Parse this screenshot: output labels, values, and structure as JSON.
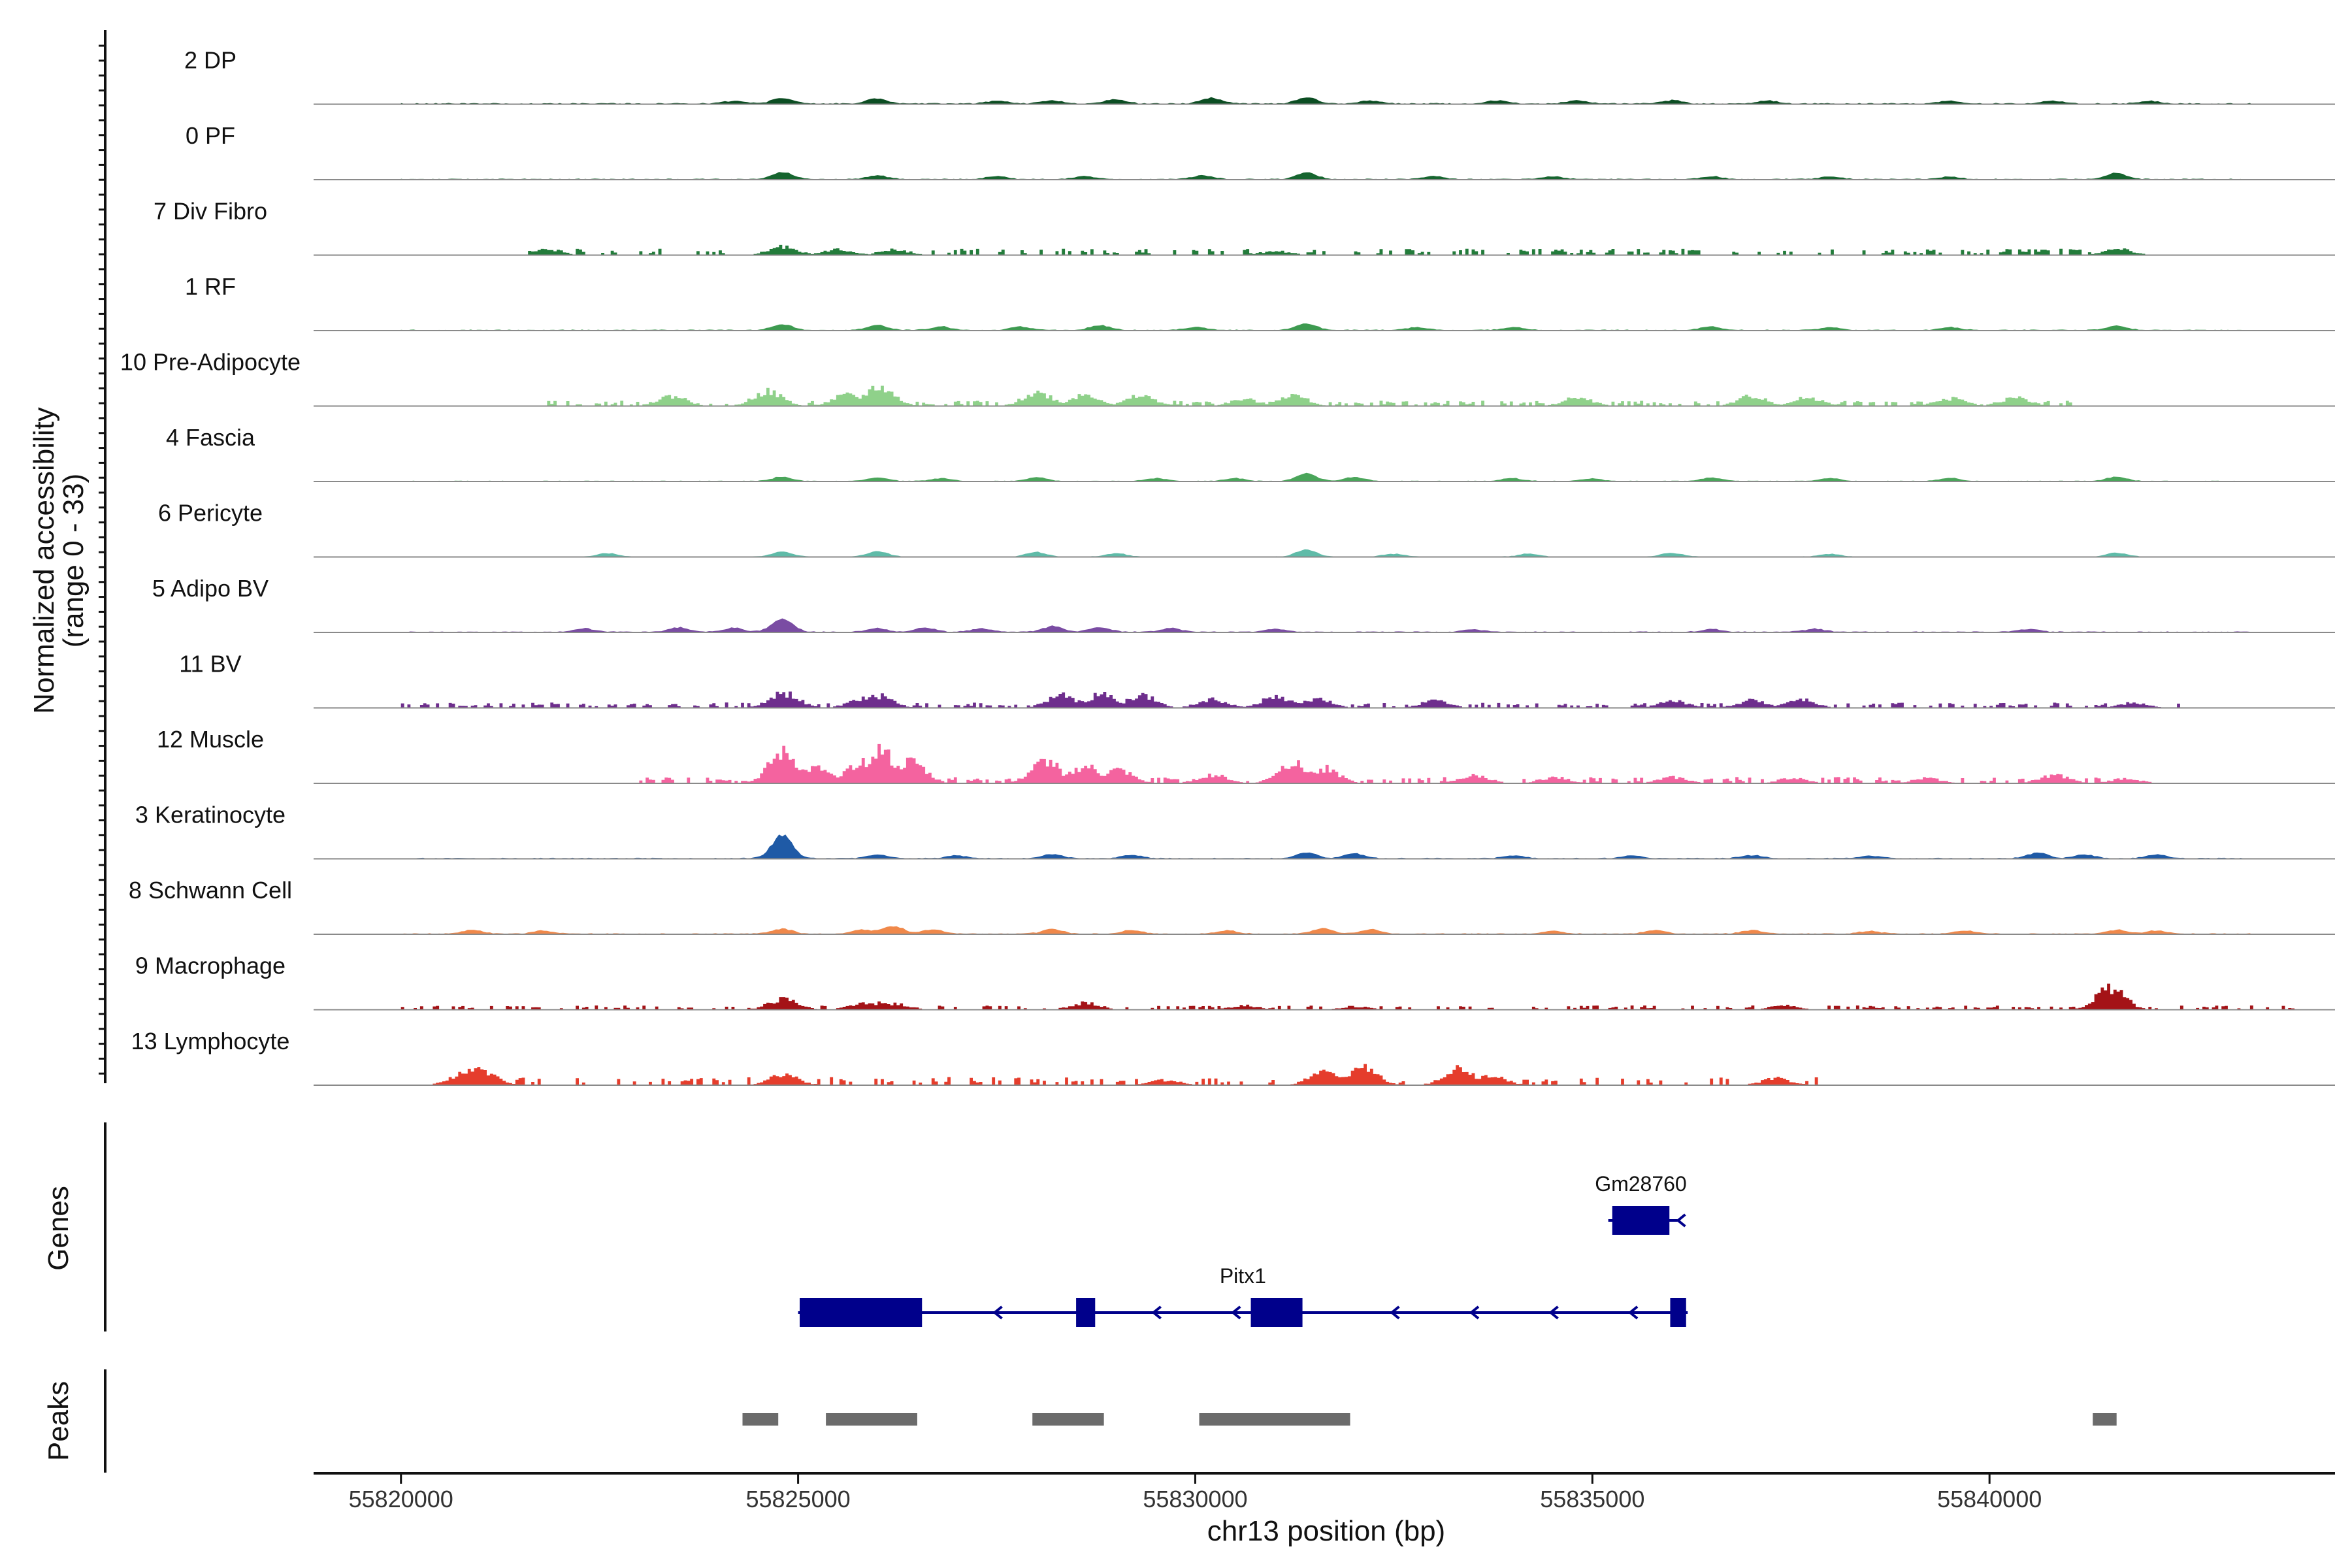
{
  "chart_data": {
    "type": "coverage",
    "ylabel_line1": "Normalized accessibility",
    "ylabel_line2": "(range 0 - 33)",
    "xlabel": "chr13 position (bp)",
    "xlim": [
      55818900,
      55844350
    ],
    "x_ticks": [
      55820000,
      55825000,
      55830000,
      55835000,
      55840000
    ],
    "x_tick_labels": [
      "55820000",
      "55825000",
      "55830000",
      "55835000",
      "55840000"
    ],
    "tracks": [
      {
        "name": "2 DP",
        "color": "#0b4d22",
        "mode": "smooth",
        "start": 55820000,
        "end": 55843300,
        "base": 0.6,
        "peaks": [
          [
            55824200,
            1.5
          ],
          [
            55824800,
            2.8
          ],
          [
            55826000,
            2.6
          ],
          [
            55827500,
            1.5
          ],
          [
            55828200,
            1.7
          ],
          [
            55829000,
            2.4
          ],
          [
            55830200,
            3.0
          ],
          [
            55831400,
            3.4
          ],
          [
            55832200,
            1.5
          ],
          [
            55833800,
            1.6
          ],
          [
            55834800,
            1.5
          ],
          [
            55836000,
            1.7
          ],
          [
            55837200,
            1.5
          ],
          [
            55839500,
            1.5
          ],
          [
            55840800,
            1.4
          ],
          [
            55842000,
            1.4
          ]
        ]
      },
      {
        "name": "0 PF",
        "color": "#16652f",
        "mode": "smooth",
        "start": 55820000,
        "end": 55843300,
        "base": 0.5,
        "peaks": [
          [
            55824800,
            4.0
          ],
          [
            55826000,
            2.0
          ],
          [
            55827500,
            1.5
          ],
          [
            55828600,
            1.5
          ],
          [
            55830100,
            2.0
          ],
          [
            55831400,
            3.4
          ],
          [
            55833000,
            1.4
          ],
          [
            55834500,
            1.3
          ],
          [
            55836500,
            1.5
          ],
          [
            55838000,
            1.4
          ],
          [
            55839500,
            1.3
          ],
          [
            55841600,
            3.2
          ]
        ]
      },
      {
        "name": "7 Div Fibro",
        "color": "#237c3b",
        "mode": "blocky",
        "start": 55821600,
        "end": 55842000,
        "fill": 0.38,
        "baseH": 3.0,
        "peaks": [
          [
            55821800,
            4.0
          ],
          [
            55824800,
            5.0
          ],
          [
            55825500,
            3.5
          ],
          [
            55826200,
            3.2
          ],
          [
            55831000,
            2.5
          ],
          [
            55841600,
            3.5
          ]
        ]
      },
      {
        "name": "1 RF",
        "color": "#3d9a50",
        "mode": "smooth",
        "start": 55820000,
        "end": 55843300,
        "base": 0.5,
        "peaks": [
          [
            55824800,
            3.0
          ],
          [
            55826000,
            2.4
          ],
          [
            55826800,
            1.8
          ],
          [
            55827800,
            1.8
          ],
          [
            55828800,
            2.4
          ],
          [
            55830000,
            1.6
          ],
          [
            55831400,
            3.2
          ],
          [
            55832800,
            1.5
          ],
          [
            55834000,
            1.5
          ],
          [
            55836500,
            1.8
          ],
          [
            55838000,
            1.4
          ],
          [
            55839500,
            1.5
          ],
          [
            55841600,
            2.2
          ]
        ]
      },
      {
        "name": "10 Pre-Adipocyte",
        "color": "#8fd18a",
        "mode": "blocky",
        "start": 55821800,
        "end": 55841000,
        "fill": 0.55,
        "baseH": 2.5,
        "peaks": [
          [
            55823400,
            6.0
          ],
          [
            55824600,
            8.5
          ],
          [
            55825600,
            6.5
          ],
          [
            55826000,
            11.5
          ],
          [
            55828000,
            8.0
          ],
          [
            55828600,
            7.0
          ],
          [
            55829300,
            6.0
          ],
          [
            55830600,
            4.0
          ],
          [
            55831200,
            6.5
          ],
          [
            55834800,
            5.0
          ],
          [
            55837000,
            6.0
          ],
          [
            55837700,
            5.0
          ],
          [
            55839500,
            4.5
          ],
          [
            55840300,
            5.0
          ]
        ]
      },
      {
        "name": "4 Fascia",
        "color": "#4aa55a",
        "mode": "smooth",
        "start": 55820000,
        "end": 55843300,
        "base": 0.4,
        "peaks": [
          [
            55824800,
            2.2
          ],
          [
            55826000,
            1.8
          ],
          [
            55826800,
            1.4
          ],
          [
            55828000,
            1.9
          ],
          [
            55829500,
            1.5
          ],
          [
            55830500,
            1.5
          ],
          [
            55831400,
            4.0
          ],
          [
            55832000,
            2.2
          ],
          [
            55834000,
            1.5
          ],
          [
            55835000,
            1.3
          ],
          [
            55836500,
            1.8
          ],
          [
            55838000,
            1.5
          ],
          [
            55839500,
            1.6
          ],
          [
            55841600,
            2.2
          ]
        ]
      },
      {
        "name": "6 Pericyte",
        "color": "#5fbba8",
        "mode": "smooth",
        "start": 55820500,
        "end": 55843300,
        "base": 0.3,
        "peaks": [
          [
            55822600,
            1.8
          ],
          [
            55824800,
            2.5
          ],
          [
            55826000,
            2.8
          ],
          [
            55828000,
            2.4
          ],
          [
            55829000,
            1.8
          ],
          [
            55831400,
            3.5
          ],
          [
            55832500,
            1.5
          ],
          [
            55834200,
            1.5
          ],
          [
            55836000,
            2.0
          ],
          [
            55838000,
            1.4
          ],
          [
            55841600,
            2.0
          ]
        ]
      },
      {
        "name": "5 Adipo BV",
        "color": "#7a4ca3",
        "mode": "smooth",
        "start": 55820000,
        "end": 55843300,
        "base": 0.5,
        "peaks": [
          [
            55822300,
            1.8
          ],
          [
            55823500,
            2.2
          ],
          [
            55824200,
            2.0
          ],
          [
            55824800,
            7.0
          ],
          [
            55826000,
            1.8
          ],
          [
            55826600,
            2.2
          ],
          [
            55827300,
            1.8
          ],
          [
            55828200,
            2.8
          ],
          [
            55828800,
            2.5
          ],
          [
            55829700,
            2.0
          ],
          [
            55831000,
            1.5
          ],
          [
            55833500,
            1.3
          ],
          [
            55836500,
            1.4
          ],
          [
            55837800,
            1.6
          ],
          [
            55840500,
            1.4
          ]
        ]
      },
      {
        "name": "11 BV",
        "color": "#6e2e8d",
        "mode": "blocky",
        "start": 55820000,
        "end": 55842400,
        "fill": 0.45,
        "baseH": 2.5,
        "peaks": [
          [
            55824800,
            9.0
          ],
          [
            55825800,
            5.5
          ],
          [
            55826000,
            7.0
          ],
          [
            55828300,
            7.5
          ],
          [
            55828800,
            8.0
          ],
          [
            55829300,
            7.5
          ],
          [
            55830200,
            5.0
          ],
          [
            55831000,
            6.5
          ],
          [
            55831500,
            5.5
          ],
          [
            55833000,
            4.0
          ],
          [
            55836000,
            4.0
          ],
          [
            55837000,
            4.5
          ],
          [
            55837600,
            5.0
          ],
          [
            55841800,
            3.0
          ]
        ]
      },
      {
        "name": "12 Muscle",
        "color": "#f4639f",
        "mode": "blocky",
        "start": 55823000,
        "end": 55842000,
        "fill": 0.5,
        "baseH": 3.0,
        "peaks": [
          [
            55824800,
            18.0
          ],
          [
            55825200,
            9.0
          ],
          [
            55825800,
            14.0
          ],
          [
            55826000,
            20.0
          ],
          [
            55826400,
            13.0
          ],
          [
            55828100,
            13.0
          ],
          [
            55828600,
            10.0
          ],
          [
            55829000,
            8.0
          ],
          [
            55830200,
            5.0
          ],
          [
            55831200,
            12.0
          ],
          [
            55831600,
            9.0
          ],
          [
            55833500,
            4.5
          ],
          [
            55834500,
            3.5
          ],
          [
            55836000,
            3.5
          ],
          [
            55837500,
            3.0
          ],
          [
            55839200,
            3.0
          ],
          [
            55840800,
            5.0
          ],
          [
            55841700,
            3.0
          ]
        ]
      },
      {
        "name": "3 Keratinocyte",
        "color": "#1f5aa6",
        "mode": "smooth",
        "start": 55820000,
        "end": 55843300,
        "base": 0.5,
        "peaks": [
          [
            55824800,
            12.0
          ],
          [
            55826000,
            2.0
          ],
          [
            55827000,
            1.5
          ],
          [
            55828200,
            2.2
          ],
          [
            55829200,
            1.6
          ],
          [
            55831400,
            3.0
          ],
          [
            55832000,
            2.5
          ],
          [
            55834000,
            1.4
          ],
          [
            55835500,
            1.5
          ],
          [
            55837000,
            1.6
          ],
          [
            55838500,
            1.3
          ],
          [
            55840600,
            3.0
          ],
          [
            55841200,
            2.0
          ],
          [
            55842100,
            2.0
          ]
        ]
      },
      {
        "name": "8 Schwann Cell",
        "color": "#f0884a",
        "mode": "smooth",
        "start": 55820000,
        "end": 55843300,
        "base": 0.5,
        "peaks": [
          [
            55820900,
            2.0
          ],
          [
            55821800,
            1.6
          ],
          [
            55824800,
            2.5
          ],
          [
            55825800,
            2.0
          ],
          [
            55826200,
            4.0
          ],
          [
            55826700,
            2.2
          ],
          [
            55828200,
            2.4
          ],
          [
            55829200,
            1.8
          ],
          [
            55830400,
            1.8
          ],
          [
            55831600,
            2.8
          ],
          [
            55832200,
            2.2
          ],
          [
            55834500,
            1.5
          ],
          [
            55835800,
            2.0
          ],
          [
            55837000,
            1.8
          ],
          [
            55838500,
            1.5
          ],
          [
            55839700,
            1.6
          ],
          [
            55841600,
            2.0
          ],
          [
            55842100,
            1.6
          ]
        ]
      },
      {
        "name": "9 Macrophage",
        "color": "#a41317",
        "mode": "blocky",
        "start": 55820000,
        "end": 55843800,
        "fill": 0.35,
        "baseH": 2.0,
        "peaks": [
          [
            55824800,
            6.5
          ],
          [
            55825800,
            3.5
          ],
          [
            55826000,
            4.0
          ],
          [
            55826200,
            3.5
          ],
          [
            55828600,
            4.0
          ],
          [
            55830600,
            2.5
          ],
          [
            55832000,
            2.0
          ],
          [
            55837400,
            2.5
          ],
          [
            55841500,
            12.5
          ]
        ]
      },
      {
        "name": "13 Lymphocyte",
        "color": "#e53d2c",
        "mode": "blocky",
        "start": 55820400,
        "end": 55837800,
        "fill": 0.32,
        "baseH": 4.0,
        "peaks": [
          [
            55820800,
            8.0
          ],
          [
            55821000,
            9.0
          ],
          [
            55824800,
            6.5
          ],
          [
            55829600,
            3.0
          ],
          [
            55831600,
            7.5
          ],
          [
            55832100,
            10.5
          ],
          [
            55833300,
            10.0
          ],
          [
            55833700,
            6.0
          ],
          [
            55837300,
            4.0
          ]
        ]
      }
    ],
    "genes_label": "Genes",
    "genes": [
      {
        "name": "Gm28760",
        "strand": "-",
        "start": 55835200,
        "end": 55836070,
        "exons": [
          [
            55835250,
            55835970
          ]
        ]
      },
      {
        "name": "Pitx1",
        "strand": "-",
        "start": 55825000,
        "end": 55836200,
        "exons": [
          [
            55825020,
            55826560
          ],
          [
            55828500,
            55828740
          ],
          [
            55830700,
            55831350
          ],
          [
            55835980,
            55836180
          ]
        ]
      }
    ],
    "peaks_label": "Peaks",
    "peak_regions": [
      [
        55824300,
        55824750
      ],
      [
        55825350,
        55826500
      ],
      [
        55827950,
        55828850
      ],
      [
        55830050,
        55831950
      ],
      [
        55841300,
        55841600
      ]
    ]
  }
}
